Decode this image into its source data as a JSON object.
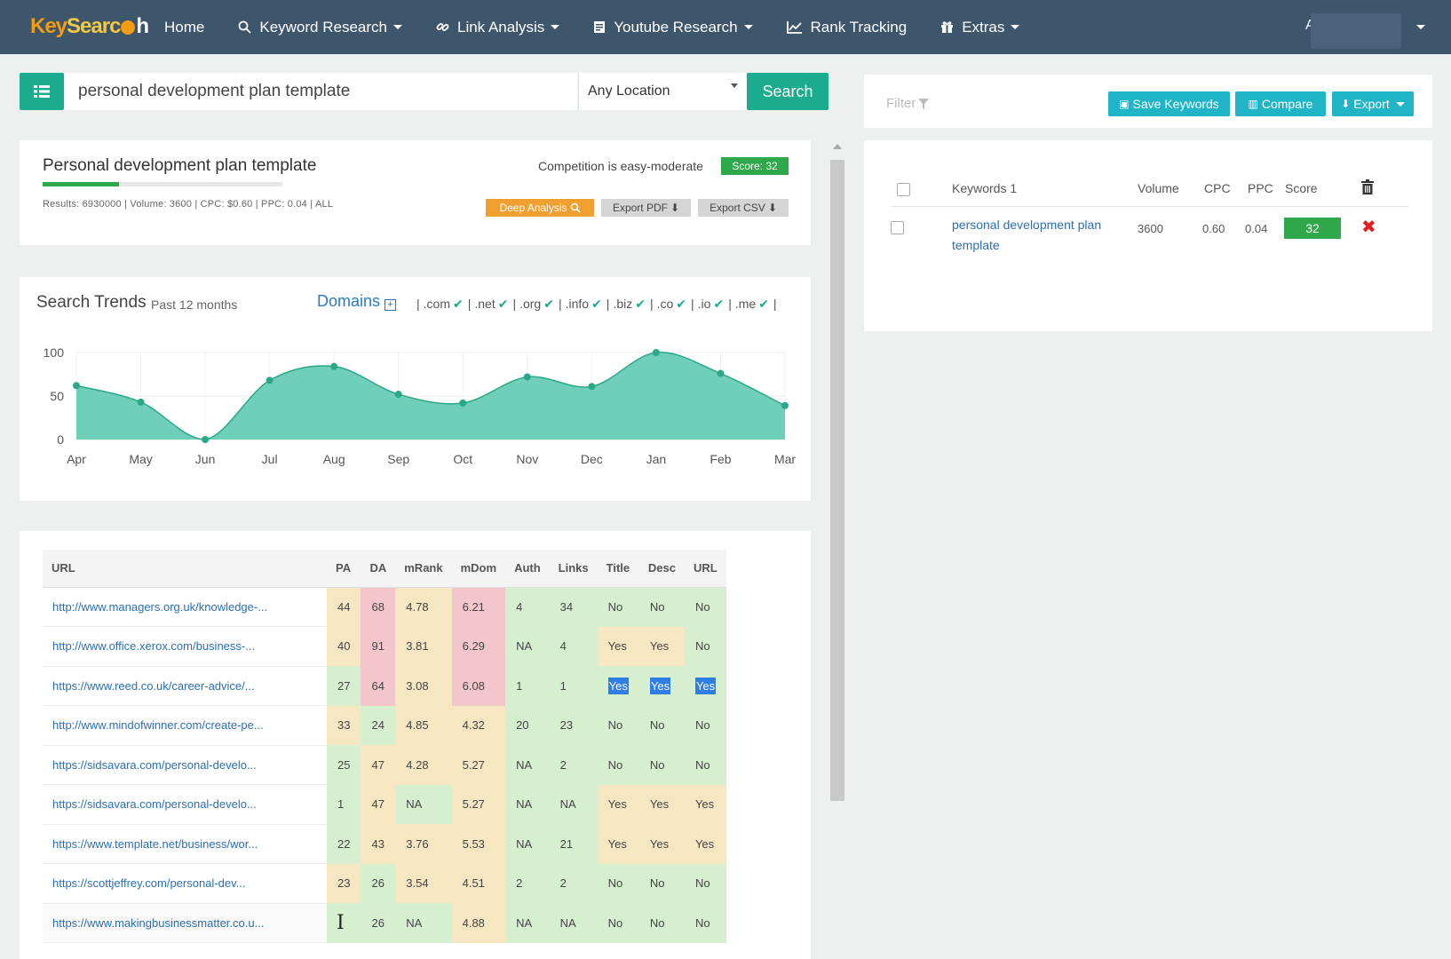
{
  "navbar": {
    "logo": {
      "part1": "Key",
      "part2": "Searc",
      "part3": "h"
    },
    "items": [
      {
        "label": "Home",
        "icon": "",
        "caret": false
      },
      {
        "label": "Keyword Research",
        "icon": "search-icon",
        "caret": true
      },
      {
        "label": "Link Analysis",
        "icon": "link-icon",
        "caret": true
      },
      {
        "label": "Youtube Research",
        "icon": "video-icon",
        "caret": true
      },
      {
        "label": "Rank Tracking",
        "icon": "chart-icon",
        "caret": false
      },
      {
        "label": "Extras",
        "icon": "gift-icon",
        "caret": true
      }
    ],
    "user_initial": "A"
  },
  "search": {
    "query": "personal development plan template",
    "location": "Any Location",
    "button": "Search"
  },
  "keyword_summary": {
    "title": "Personal development plan template",
    "stats": "Results: 6930000 | Volume: 3600 | CPC: $0.60 | PPC: 0.04 | ALL",
    "competition": "Competition is easy-moderate",
    "score": "Score: 32",
    "score_fraction": 0.32,
    "deep_analysis": "Deep Analysis",
    "export_pdf": "Export PDF",
    "export_csv": "Export CSV"
  },
  "trends": {
    "title": "Search Trends",
    "subtitle": "Past 12 months",
    "domains_label": "Domains",
    "domains": [
      ".com",
      ".net",
      ".org",
      ".info",
      ".biz",
      ".co",
      ".io",
      ".me"
    ]
  },
  "chart_data": {
    "type": "area",
    "categories": [
      "Apr",
      "May",
      "Jun",
      "Jul",
      "Aug",
      "Sep",
      "Oct",
      "Nov",
      "Dec",
      "Jan",
      "Feb",
      "Mar"
    ],
    "values": [
      62,
      43,
      0,
      68,
      84,
      52,
      42,
      72,
      61,
      100,
      76,
      39
    ],
    "ylim": [
      0,
      100
    ],
    "yticks": [
      0,
      50,
      100
    ],
    "color": "#6fcfb8",
    "line_color": "#2aa889",
    "grid": true
  },
  "url_table": {
    "headers": [
      "URL",
      "PA",
      "DA",
      "mRank",
      "mDom",
      "Auth",
      "Links",
      "Title",
      "Desc",
      "URL"
    ],
    "rows": [
      {
        "url": "http://www.managers.org.uk/knowledge-...",
        "cells": [
          "44",
          "68",
          "4.78",
          "6.21",
          "4",
          "34",
          "No",
          "No",
          "No"
        ],
        "colors": [
          "y",
          "r",
          "y",
          "r",
          "g",
          "g",
          "g",
          "g",
          "g"
        ]
      },
      {
        "url": "http://www.office.xerox.com/business-...",
        "cells": [
          "40",
          "91",
          "3.81",
          "6.29",
          "NA",
          "4",
          "Yes",
          "Yes",
          "No"
        ],
        "colors": [
          "y",
          "r",
          "y",
          "r",
          "g",
          "g",
          "y",
          "y",
          "g"
        ]
      },
      {
        "url": "https://www.reed.co.uk/career-advice/...",
        "cells": [
          "27",
          "64",
          "3.08",
          "6.08",
          "1",
          "1",
          "Yes",
          "Yes",
          "Yes"
        ],
        "colors": [
          "g",
          "r",
          "y",
          "r",
          "g",
          "g",
          "g",
          "g",
          "g"
        ],
        "highlight": [
          6,
          7,
          8
        ]
      },
      {
        "url": "http://www.mindofwinner.com/create-pe...",
        "cells": [
          "33",
          "24",
          "4.85",
          "4.32",
          "20",
          "23",
          "No",
          "No",
          "No"
        ],
        "colors": [
          "y",
          "g",
          "y",
          "y",
          "g",
          "g",
          "g",
          "g",
          "g"
        ]
      },
      {
        "url": "https://sidsavara.com/personal-develo...",
        "cells": [
          "25",
          "47",
          "4.28",
          "5.27",
          "NA",
          "2",
          "No",
          "No",
          "No"
        ],
        "colors": [
          "g",
          "y",
          "y",
          "y",
          "g",
          "g",
          "g",
          "g",
          "g"
        ]
      },
      {
        "url": "https://sidsavara.com/personal-develo...",
        "cells": [
          "1",
          "47",
          "NA",
          "5.27",
          "NA",
          "NA",
          "Yes",
          "Yes",
          "Yes"
        ],
        "colors": [
          "g",
          "y",
          "g",
          "y",
          "g",
          "g",
          "y",
          "y",
          "y"
        ]
      },
      {
        "url": "https://www.template.net/business/wor...",
        "cells": [
          "22",
          "43",
          "3.76",
          "5.53",
          "NA",
          "21",
          "Yes",
          "Yes",
          "Yes"
        ],
        "colors": [
          "g",
          "y",
          "y",
          "y",
          "g",
          "g",
          "y",
          "y",
          "y"
        ]
      },
      {
        "url": "https://scottjeffrey.com/personal-dev...",
        "cells": [
          "23",
          "26",
          "3.54",
          "4.51",
          "2",
          "2",
          "No",
          "No",
          "No"
        ],
        "colors": [
          "y",
          "g",
          "y",
          "y",
          "g",
          "g",
          "g",
          "g",
          "g"
        ]
      },
      {
        "url": "https://www.makingbusinessmatter.co.u...",
        "cells": [
          "",
          "26",
          "NA",
          "4.88",
          "NA",
          "NA",
          "No",
          "No",
          "No"
        ],
        "colors": [
          "g",
          "g",
          "g",
          "y",
          "g",
          "g",
          "g",
          "g",
          "g"
        ]
      }
    ],
    "cell_colors": {
      "g": "#d6efce",
      "y": "#f6e6c2",
      "r": "#f3c6cc"
    }
  },
  "saved_panel": {
    "filter": "Filter",
    "save_keywords": "Save Keywords",
    "compare": "Compare",
    "export": "Export",
    "headers": {
      "keywords": "Keywords 1",
      "volume": "Volume",
      "cpc": "CPC",
      "ppc": "PPC",
      "score": "Score"
    },
    "rows": [
      {
        "keyword": "personal development plan template",
        "volume": "3600",
        "cpc": "0.60",
        "ppc": "0.04",
        "score": "32"
      }
    ]
  }
}
